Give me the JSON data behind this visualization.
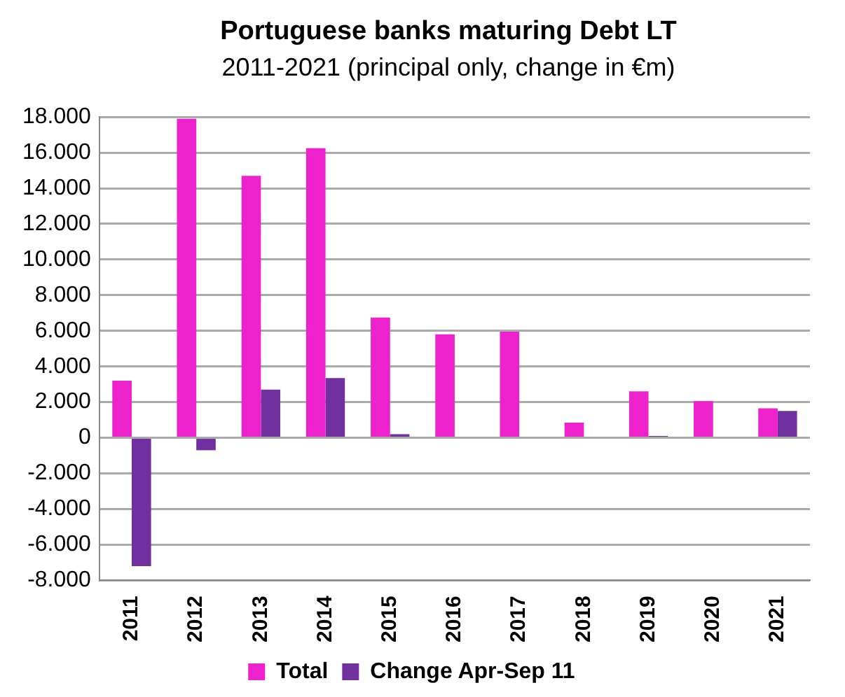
{
  "chart_data": {
    "type": "bar",
    "title": "Portuguese banks maturing Debt LT",
    "subtitle": "2011-2021 (principal only, change in €m)",
    "categories": [
      "2011",
      "2012",
      "2013",
      "2014",
      "2015",
      "2016",
      "2017",
      "2018",
      "2019",
      "2020",
      "2021"
    ],
    "series": [
      {
        "name": "Total",
        "color": "#ee22cc",
        "values": [
          3200,
          17900,
          14700,
          16250,
          6750,
          5800,
          5950,
          850,
          2600,
          2050,
          1650
        ]
      },
      {
        "name": "Change Apr-Sep 11",
        "color": "#7030a0",
        "values": [
          -7200,
          -700,
          2700,
          3350,
          200,
          0,
          0,
          0,
          100,
          0,
          1500
        ]
      }
    ],
    "ylim": [
      -8000,
      18000
    ],
    "yticks": [
      {
        "value": -8000,
        "label": "-8.000"
      },
      {
        "value": -6000,
        "label": "-6.000"
      },
      {
        "value": -4000,
        "label": "-4.000"
      },
      {
        "value": -2000,
        "label": "-2.000"
      },
      0,
      {
        "value": 2000,
        "label": "2.000"
      },
      {
        "value": 4000,
        "label": "4.000"
      },
      {
        "value": 6000,
        "label": "6.000"
      },
      {
        "value": 8000,
        "label": "8.000"
      },
      {
        "value": 10000,
        "label": "10.000"
      },
      {
        "value": 12000,
        "label": "12.000"
      },
      {
        "value": 14000,
        "label": "14.000"
      },
      {
        "value": 16000,
        "label": "16.000"
      },
      {
        "value": 18000,
        "label": "18.000"
      }
    ],
    "grid": "y",
    "legend": "bottom"
  }
}
